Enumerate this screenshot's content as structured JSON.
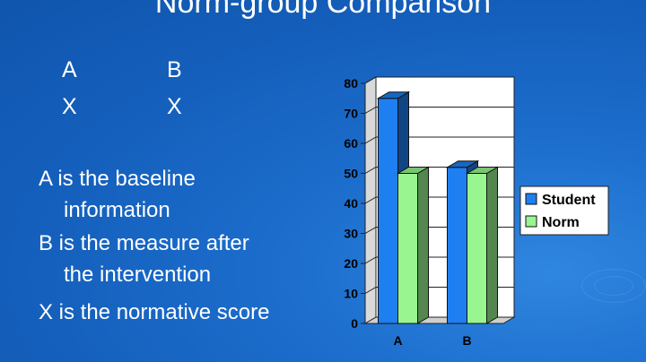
{
  "slide": {
    "title": "Norm-group Comparison",
    "grid": [
      [
        "A",
        "B"
      ],
      [
        "X",
        "X"
      ]
    ],
    "definitions": [
      {
        "line1": "A is the baseline",
        "line2": "information"
      },
      {
        "line1": "B is the measure after",
        "line2": "the intervention"
      },
      {
        "line1": "X is the normative score",
        "line2": ""
      }
    ]
  },
  "colors": {
    "student": "#1e7ff0",
    "norm": "#99f58f",
    "wall": "#ffffff",
    "background": "#1560bd"
  },
  "chart_data": {
    "type": "bar",
    "categories": [
      "A",
      "B"
    ],
    "series": [
      {
        "name": "Student",
        "values": [
          75,
          52
        ]
      },
      {
        "name": "Norm",
        "values": [
          50,
          50
        ]
      }
    ],
    "ylim": [
      0,
      80
    ],
    "yticks": [
      0,
      10,
      20,
      30,
      40,
      50,
      60,
      70,
      80
    ],
    "grid": true,
    "legend": "right",
    "style": "3d"
  }
}
